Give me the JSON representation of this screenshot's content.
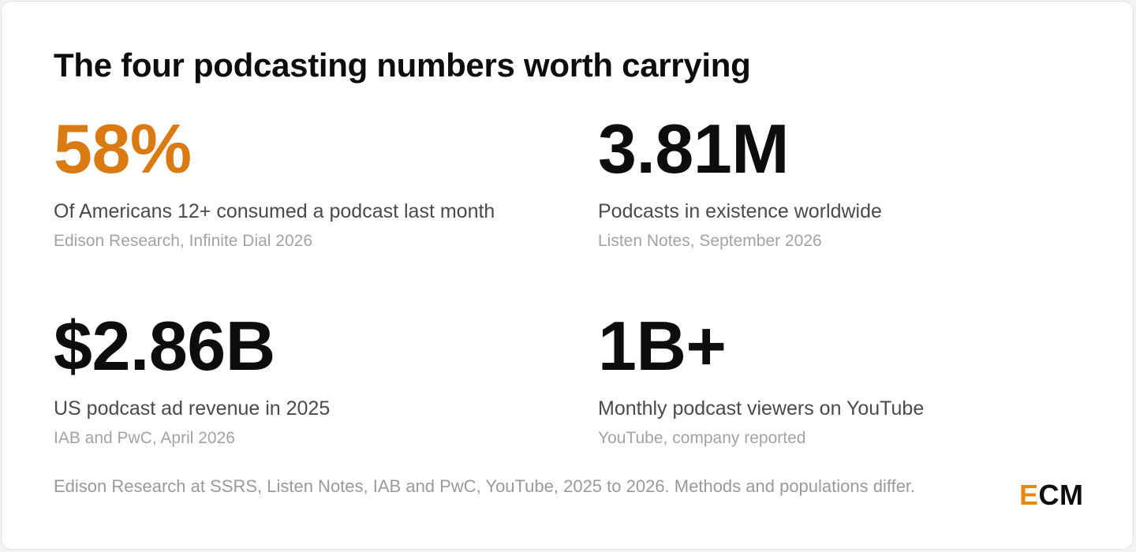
{
  "title": "The four podcasting numbers worth carrying",
  "stats": [
    {
      "value": "58%",
      "description": "Of Americans 12+ consumed a podcast last month",
      "source": "Edison Research, Infinite Dial 2026"
    },
    {
      "value": "3.81M",
      "description": "Podcasts in existence worldwide",
      "source": "Listen Notes, September 2026"
    },
    {
      "value": "$2.86B",
      "description": "US podcast ad revenue in 2025",
      "source": "IAB and PwC, April 2026"
    },
    {
      "value": "1B+",
      "description": "Monthly podcast viewers on YouTube",
      "source": "YouTube, company reported"
    }
  ],
  "footnote": "Edison Research at SSRS, Listen Notes, IAB and PwC, YouTube, 2025 to 2026. Methods and populations differ.",
  "logo": {
    "first": "E",
    "rest": "CM"
  },
  "colors": {
    "accent": "#d97b12",
    "logo_accent": "#e8890f",
    "text": "#0d0d0d",
    "muted": "#4a4a4a",
    "subtle": "#a3a3a3"
  }
}
